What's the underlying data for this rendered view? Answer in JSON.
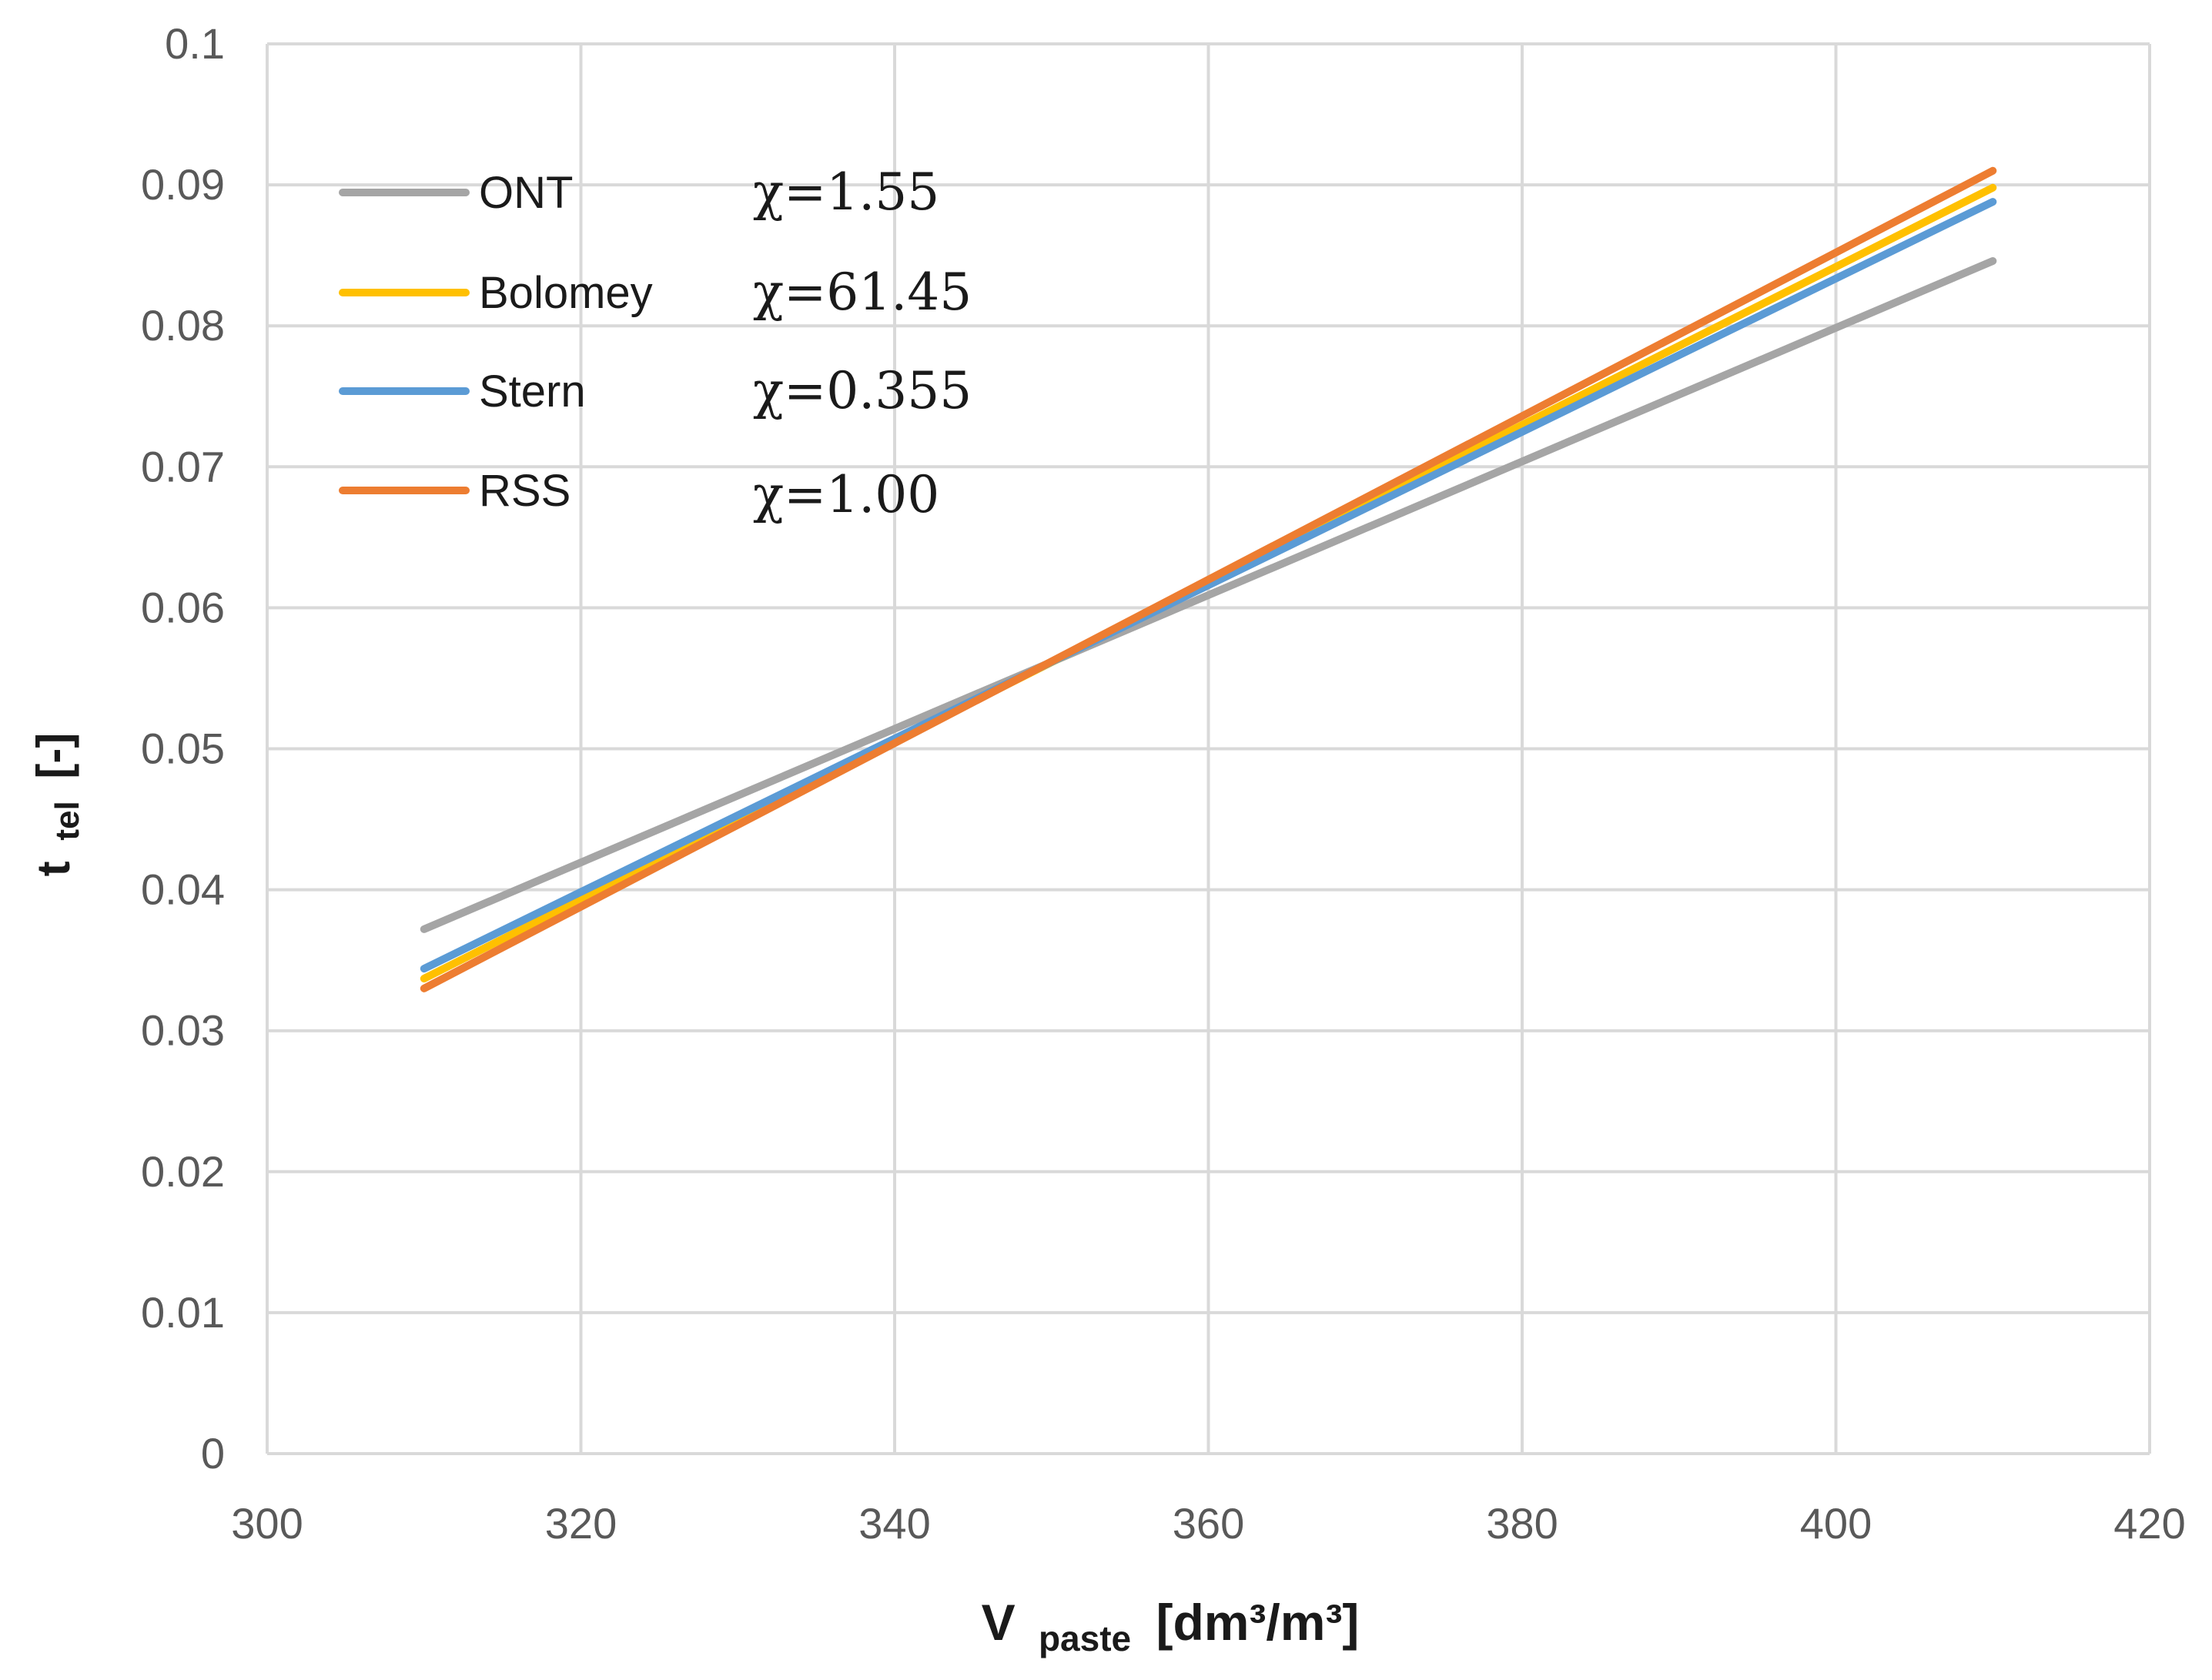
{
  "chart_data": {
    "type": "line",
    "title": "",
    "xlabel": {
      "main": "V",
      "sub": "paste",
      "unit": "[dm³/m³]"
    },
    "ylabel": {
      "main": "t",
      "sub": "tel",
      "unit": "[-]"
    },
    "xlim": [
      300,
      420
    ],
    "ylim": [
      0,
      0.1
    ],
    "x_ticks": [
      300,
      320,
      340,
      360,
      380,
      400,
      420
    ],
    "x_tick_labels": [
      "300",
      "320",
      "340",
      "360",
      "380",
      "400",
      "420"
    ],
    "y_ticks": [
      0,
      0.01,
      0.02,
      0.03,
      0.04,
      0.05,
      0.06,
      0.07,
      0.08,
      0.09,
      0.1
    ],
    "y_tick_labels": [
      "0",
      "0.01",
      "0.02",
      "0.03",
      "0.04",
      "0.05",
      "0.06",
      "0.07",
      "0.08",
      "0.09",
      "0.1"
    ],
    "grid": true,
    "legend_position": "top-left",
    "series": [
      {
        "name": "ONT",
        "annotation": "χ=1.55",
        "color": "#a5a5a5",
        "x": [
          310,
          410
        ],
        "y": [
          0.0372,
          0.0846
        ]
      },
      {
        "name": "Bolomey",
        "annotation": "χ=61.45",
        "color": "#ffc000",
        "x": [
          310,
          410
        ],
        "y": [
          0.0337,
          0.0898
        ]
      },
      {
        "name": "Stern",
        "annotation": "χ=0.355",
        "color": "#5b9bd5",
        "x": [
          310,
          410
        ],
        "y": [
          0.0344,
          0.0888
        ]
      },
      {
        "name": "RSS",
        "annotation": "χ=1.00",
        "color": "#ed7d31",
        "x": [
          310,
          410
        ],
        "y": [
          0.033,
          0.091
        ]
      }
    ]
  }
}
